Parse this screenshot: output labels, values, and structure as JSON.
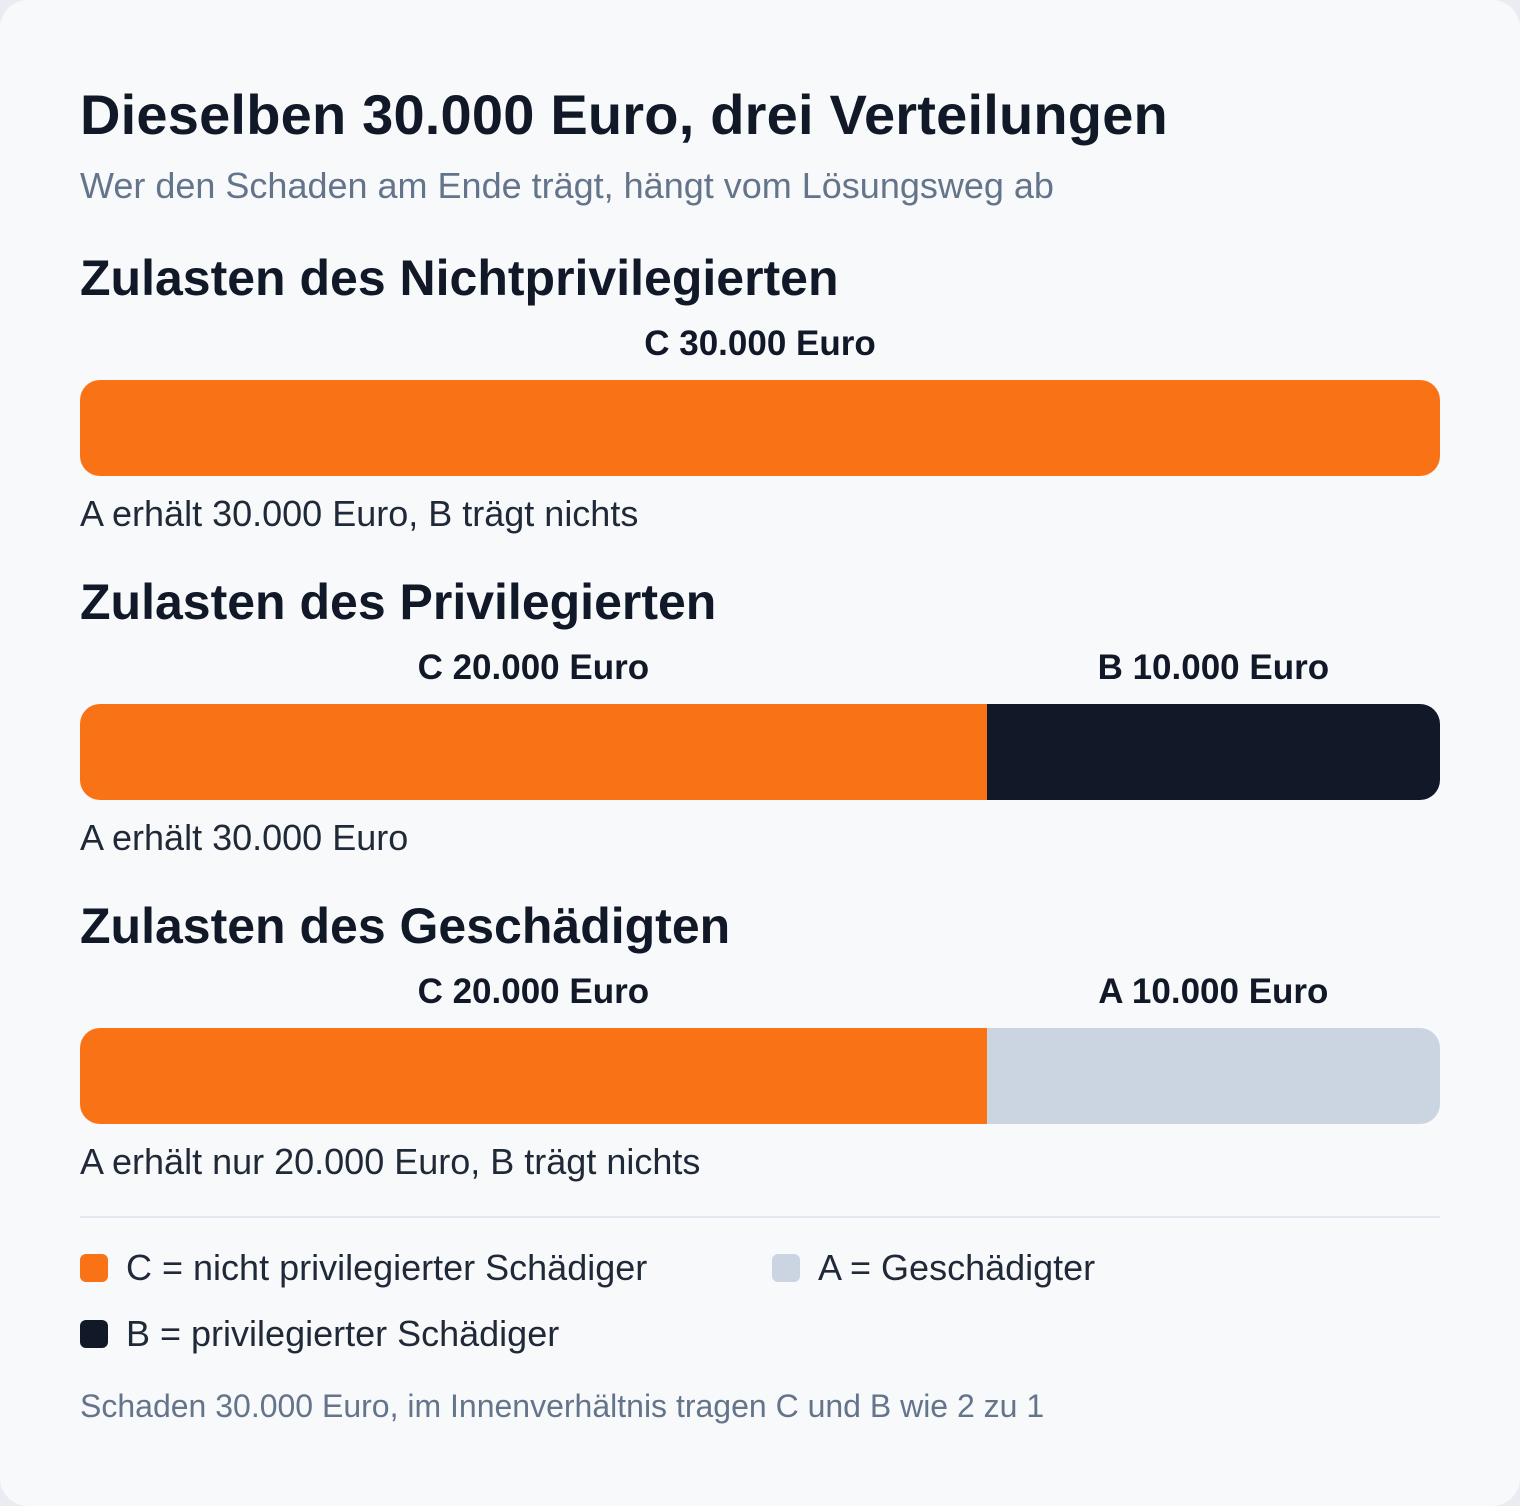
{
  "header": {
    "title": "Dieselben 30.000 Euro, drei Verteilungen",
    "subtitle": "Wer den Schaden am Ende trägt, hängt vom Lösungsweg ab"
  },
  "chart_data": {
    "type": "bar",
    "orientation": "horizontal-stacked",
    "total": 30000,
    "unit": "Euro",
    "scenarios": [
      {
        "title": "Zulasten des Nichtprivilegierten",
        "segments": [
          {
            "party": "C",
            "value": 30000,
            "label": "C 30.000 Euro",
            "color": "#f97316"
          }
        ],
        "note": "A erhält 30.000 Euro, B trägt nichts"
      },
      {
        "title": "Zulasten des Privilegierten",
        "segments": [
          {
            "party": "C",
            "value": 20000,
            "label": "C 20.000 Euro",
            "color": "#f97316"
          },
          {
            "party": "B",
            "value": 10000,
            "label": "B 10.000 Euro",
            "color": "#111827"
          }
        ],
        "note": "A erhält 30.000 Euro"
      },
      {
        "title": "Zulasten des Geschädigten",
        "segments": [
          {
            "party": "C",
            "value": 20000,
            "label": "C 20.000 Euro",
            "color": "#f97316"
          },
          {
            "party": "A",
            "value": 10000,
            "label": "A 10.000 Euro",
            "color": "#cbd5e1"
          }
        ],
        "note": "A erhält nur 20.000 Euro, B trägt nichts"
      }
    ],
    "legend": [
      {
        "label": "C = nicht privilegierter Schädiger",
        "color": "#f97316"
      },
      {
        "label": "A = Geschädigter",
        "color": "#cbd5e1"
      },
      {
        "label": "B = privilegierter Schädiger",
        "color": "#111827"
      }
    ],
    "footnote": "Schaden 30.000 Euro, im Innenverhältnis tragen C und B wie 2 zu 1"
  }
}
